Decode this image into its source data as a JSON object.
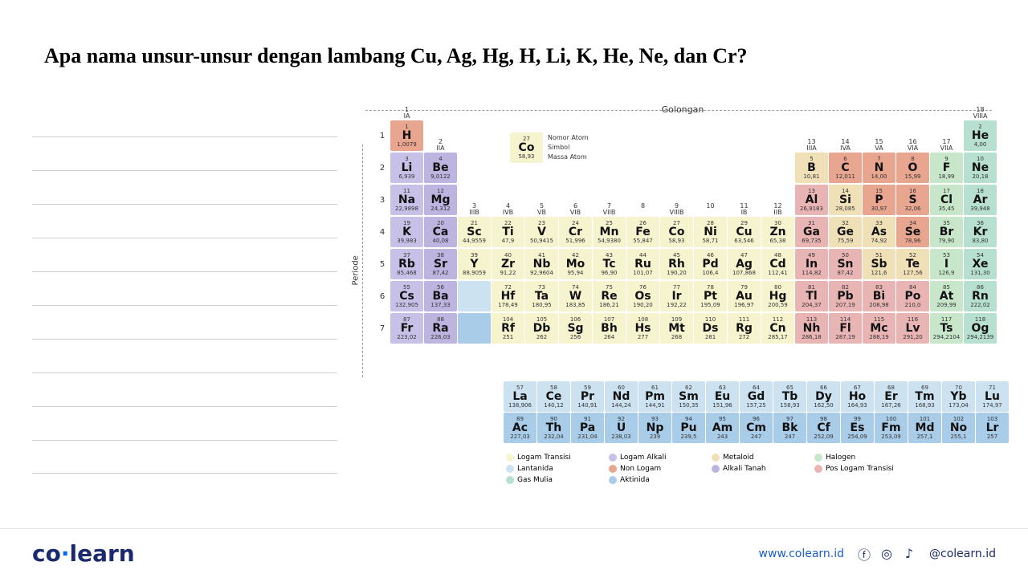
{
  "title": "Apa nama unsur-unsur dengan lambang Cu, Ag, Hg, H, Li, K, He, Ne, dan Cr?",
  "golongan_label": "Golongan",
  "periode_label": "Periode",
  "key_labels": {
    "atomic_no": "Nomor Atom",
    "symbol": "Simbol",
    "mass": "Massa Atom"
  },
  "key_element": {
    "n": "27",
    "s": "Co",
    "m": "58,93"
  },
  "colors": {
    "transition": "#f6f3cf",
    "alkali": "#c7c1e8",
    "alkaline_earth": "#bdb4e0",
    "metalloid": "#f0e0b8",
    "post_transition": "#e8b4b4",
    "halogen": "#c8e6c9",
    "noble_gas": "#b8e0d0",
    "non_metal": "#e8a58f",
    "lanthanide": "#cde2f0",
    "actinide": "#a9cce8"
  },
  "groups": [
    {
      "num": "1",
      "lab": "IA"
    },
    {
      "num": "2",
      "lab": "IIA"
    },
    {
      "num": "3",
      "lab": "IIIB"
    },
    {
      "num": "4",
      "lab": "IVB"
    },
    {
      "num": "5",
      "lab": "VB"
    },
    {
      "num": "6",
      "lab": "VIB"
    },
    {
      "num": "7",
      "lab": "VIIB"
    },
    {
      "num": "8",
      "lab": ""
    },
    {
      "num": "9",
      "lab": "VIIIB"
    },
    {
      "num": "10",
      "lab": ""
    },
    {
      "num": "11",
      "lab": "IB"
    },
    {
      "num": "12",
      "lab": "IIB"
    },
    {
      "num": "13",
      "lab": "IIIA"
    },
    {
      "num": "14",
      "lab": "IVA"
    },
    {
      "num": "15",
      "lab": "VA"
    },
    {
      "num": "16",
      "lab": "VIA"
    },
    {
      "num": "17",
      "lab": "VIIA"
    },
    {
      "num": "18",
      "lab": "VIIIA"
    }
  ],
  "elements": [
    {
      "p": 1,
      "g": 1,
      "n": "1",
      "s": "H",
      "m": "1,0079",
      "c": "non_metal"
    },
    {
      "p": 1,
      "g": 18,
      "n": "2",
      "s": "He",
      "m": "4,00",
      "c": "noble_gas"
    },
    {
      "p": 2,
      "g": 1,
      "n": "3",
      "s": "Li",
      "m": "6,939",
      "c": "alkali"
    },
    {
      "p": 2,
      "g": 2,
      "n": "4",
      "s": "Be",
      "m": "9,0122",
      "c": "alkaline_earth"
    },
    {
      "p": 2,
      "g": 13,
      "n": "5",
      "s": "B",
      "m": "10,81",
      "c": "metalloid"
    },
    {
      "p": 2,
      "g": 14,
      "n": "6",
      "s": "C",
      "m": "12,011",
      "c": "non_metal"
    },
    {
      "p": 2,
      "g": 15,
      "n": "7",
      "s": "N",
      "m": "14,00",
      "c": "non_metal"
    },
    {
      "p": 2,
      "g": 16,
      "n": "8",
      "s": "O",
      "m": "15,99",
      "c": "non_metal"
    },
    {
      "p": 2,
      "g": 17,
      "n": "9",
      "s": "F",
      "m": "18,99",
      "c": "halogen"
    },
    {
      "p": 2,
      "g": 18,
      "n": "10",
      "s": "Ne",
      "m": "20,18",
      "c": "noble_gas"
    },
    {
      "p": 3,
      "g": 1,
      "n": "11",
      "s": "Na",
      "m": "22,9898",
      "c": "alkali"
    },
    {
      "p": 3,
      "g": 2,
      "n": "12",
      "s": "Mg",
      "m": "24,312",
      "c": "alkaline_earth"
    },
    {
      "p": 3,
      "g": 13,
      "n": "13",
      "s": "Al",
      "m": "26,9183",
      "c": "post_transition"
    },
    {
      "p": 3,
      "g": 14,
      "n": "14",
      "s": "Si",
      "m": "28,085",
      "c": "metalloid"
    },
    {
      "p": 3,
      "g": 15,
      "n": "15",
      "s": "P",
      "m": "30,97",
      "c": "non_metal"
    },
    {
      "p": 3,
      "g": 16,
      "n": "16",
      "s": "S",
      "m": "32,06",
      "c": "non_metal"
    },
    {
      "p": 3,
      "g": 17,
      "n": "17",
      "s": "Cl",
      "m": "35,45",
      "c": "halogen"
    },
    {
      "p": 3,
      "g": 18,
      "n": "18",
      "s": "Ar",
      "m": "39,948",
      "c": "noble_gas"
    },
    {
      "p": 4,
      "g": 1,
      "n": "19",
      "s": "K",
      "m": "39,983",
      "c": "alkali"
    },
    {
      "p": 4,
      "g": 2,
      "n": "20",
      "s": "Ca",
      "m": "40,08",
      "c": "alkaline_earth"
    },
    {
      "p": 4,
      "g": 3,
      "n": "21",
      "s": "Sc",
      "m": "44,9559",
      "c": "transition"
    },
    {
      "p": 4,
      "g": 4,
      "n": "22",
      "s": "Ti",
      "m": "47,9",
      "c": "transition"
    },
    {
      "p": 4,
      "g": 5,
      "n": "23",
      "s": "V",
      "m": "50,9415",
      "c": "transition"
    },
    {
      "p": 4,
      "g": 6,
      "n": "24",
      "s": "Cr",
      "m": "51,996",
      "c": "transition"
    },
    {
      "p": 4,
      "g": 7,
      "n": "25",
      "s": "Mn",
      "m": "54,9380",
      "c": "transition"
    },
    {
      "p": 4,
      "g": 8,
      "n": "26",
      "s": "Fe",
      "m": "55,847",
      "c": "transition"
    },
    {
      "p": 4,
      "g": 9,
      "n": "27",
      "s": "Co",
      "m": "58,93",
      "c": "transition"
    },
    {
      "p": 4,
      "g": 10,
      "n": "28",
      "s": "Ni",
      "m": "58,71",
      "c": "transition"
    },
    {
      "p": 4,
      "g": 11,
      "n": "29",
      "s": "Cu",
      "m": "63,546",
      "c": "transition"
    },
    {
      "p": 4,
      "g": 12,
      "n": "30",
      "s": "Zn",
      "m": "65,38",
      "c": "transition"
    },
    {
      "p": 4,
      "g": 13,
      "n": "31",
      "s": "Ga",
      "m": "69,735",
      "c": "post_transition"
    },
    {
      "p": 4,
      "g": 14,
      "n": "32",
      "s": "Ge",
      "m": "75,59",
      "c": "metalloid"
    },
    {
      "p": 4,
      "g": 15,
      "n": "33",
      "s": "As",
      "m": "74,92",
      "c": "metalloid"
    },
    {
      "p": 4,
      "g": 16,
      "n": "34",
      "s": "Se",
      "m": "78,96",
      "c": "non_metal"
    },
    {
      "p": 4,
      "g": 17,
      "n": "35",
      "s": "Br",
      "m": "79,90",
      "c": "halogen"
    },
    {
      "p": 4,
      "g": 18,
      "n": "36",
      "s": "Kr",
      "m": "83,80",
      "c": "noble_gas"
    },
    {
      "p": 5,
      "g": 1,
      "n": "37",
      "s": "Rb",
      "m": "85,468",
      "c": "alkali"
    },
    {
      "p": 5,
      "g": 2,
      "n": "38",
      "s": "Sr",
      "m": "87,42",
      "c": "alkaline_earth"
    },
    {
      "p": 5,
      "g": 3,
      "n": "39",
      "s": "Y",
      "m": "88,9059",
      "c": "transition"
    },
    {
      "p": 5,
      "g": 4,
      "n": "40",
      "s": "Zr",
      "m": "91,22",
      "c": "transition"
    },
    {
      "p": 5,
      "g": 5,
      "n": "41",
      "s": "Nb",
      "m": "92,9604",
      "c": "transition"
    },
    {
      "p": 5,
      "g": 6,
      "n": "42",
      "s": "Mo",
      "m": "95,94",
      "c": "transition"
    },
    {
      "p": 5,
      "g": 7,
      "n": "43",
      "s": "Tc",
      "m": "96,90",
      "c": "transition"
    },
    {
      "p": 5,
      "g": 8,
      "n": "44",
      "s": "Ru",
      "m": "101,07",
      "c": "transition"
    },
    {
      "p": 5,
      "g": 9,
      "n": "45",
      "s": "Rh",
      "m": "190,20",
      "c": "transition"
    },
    {
      "p": 5,
      "g": 10,
      "n": "46",
      "s": "Pd",
      "m": "106,4",
      "c": "transition"
    },
    {
      "p": 5,
      "g": 11,
      "n": "47",
      "s": "Ag",
      "m": "107,868",
      "c": "transition"
    },
    {
      "p": 5,
      "g": 12,
      "n": "48",
      "s": "Cd",
      "m": "112,41",
      "c": "transition"
    },
    {
      "p": 5,
      "g": 13,
      "n": "49",
      "s": "In",
      "m": "114,82",
      "c": "post_transition"
    },
    {
      "p": 5,
      "g": 14,
      "n": "50",
      "s": "Sn",
      "m": "87,42",
      "c": "post_transition"
    },
    {
      "p": 5,
      "g": 15,
      "n": "51",
      "s": "Sb",
      "m": "121,6",
      "c": "metalloid"
    },
    {
      "p": 5,
      "g": 16,
      "n": "52",
      "s": "Te",
      "m": "127,56",
      "c": "metalloid"
    },
    {
      "p": 5,
      "g": 17,
      "n": "53",
      "s": "I",
      "m": "126,9",
      "c": "halogen"
    },
    {
      "p": 5,
      "g": 18,
      "n": "54",
      "s": "Xe",
      "m": "131,30",
      "c": "noble_gas"
    },
    {
      "p": 6,
      "g": 1,
      "n": "55",
      "s": "Cs",
      "m": "132,905",
      "c": "alkali"
    },
    {
      "p": 6,
      "g": 2,
      "n": "56",
      "s": "Ba",
      "m": "137,33",
      "c": "alkaline_earth"
    },
    {
      "p": 6,
      "g": 3,
      "n": "",
      "s": "",
      "m": "",
      "c": "lanthanide"
    },
    {
      "p": 6,
      "g": 4,
      "n": "72",
      "s": "Hf",
      "m": "178,49",
      "c": "transition"
    },
    {
      "p": 6,
      "g": 5,
      "n": "73",
      "s": "Ta",
      "m": "180,95",
      "c": "transition"
    },
    {
      "p": 6,
      "g": 6,
      "n": "74",
      "s": "W",
      "m": "183,85",
      "c": "transition"
    },
    {
      "p": 6,
      "g": 7,
      "n": "75",
      "s": "Re",
      "m": "186,21",
      "c": "transition"
    },
    {
      "p": 6,
      "g": 8,
      "n": "76",
      "s": "Os",
      "m": "190,20",
      "c": "transition"
    },
    {
      "p": 6,
      "g": 9,
      "n": "77",
      "s": "Ir",
      "m": "192,22",
      "c": "transition"
    },
    {
      "p": 6,
      "g": 10,
      "n": "78",
      "s": "Pt",
      "m": "195,09",
      "c": "transition"
    },
    {
      "p": 6,
      "g": 11,
      "n": "79",
      "s": "Au",
      "m": "196,97",
      "c": "transition"
    },
    {
      "p": 6,
      "g": 12,
      "n": "80",
      "s": "Hg",
      "m": "200,59",
      "c": "transition"
    },
    {
      "p": 6,
      "g": 13,
      "n": "81",
      "s": "Tl",
      "m": "204,37",
      "c": "post_transition"
    },
    {
      "p": 6,
      "g": 14,
      "n": "82",
      "s": "Pb",
      "m": "207,19",
      "c": "post_transition"
    },
    {
      "p": 6,
      "g": 15,
      "n": "83",
      "s": "Bi",
      "m": "208,98",
      "c": "post_transition"
    },
    {
      "p": 6,
      "g": 16,
      "n": "84",
      "s": "Po",
      "m": "210,0",
      "c": "post_transition"
    },
    {
      "p": 6,
      "g": 17,
      "n": "85",
      "s": "At",
      "m": "209,99",
      "c": "halogen"
    },
    {
      "p": 6,
      "g": 18,
      "n": "86",
      "s": "Rn",
      "m": "222,02",
      "c": "noble_gas"
    },
    {
      "p": 7,
      "g": 1,
      "n": "87",
      "s": "Fr",
      "m": "223,02",
      "c": "alkali"
    },
    {
      "p": 7,
      "g": 2,
      "n": "88",
      "s": "Ra",
      "m": "226,03",
      "c": "alkaline_earth"
    },
    {
      "p": 7,
      "g": 3,
      "n": "",
      "s": "",
      "m": "",
      "c": "actinide"
    },
    {
      "p": 7,
      "g": 4,
      "n": "104",
      "s": "Rf",
      "m": "251",
      "c": "transition"
    },
    {
      "p": 7,
      "g": 5,
      "n": "105",
      "s": "Db",
      "m": "262",
      "c": "transition"
    },
    {
      "p": 7,
      "g": 6,
      "n": "106",
      "s": "Sg",
      "m": "256",
      "c": "transition"
    },
    {
      "p": 7,
      "g": 7,
      "n": "107",
      "s": "Bh",
      "m": "264",
      "c": "transition"
    },
    {
      "p": 7,
      "g": 8,
      "n": "108",
      "s": "Hs",
      "m": "277",
      "c": "transition"
    },
    {
      "p": 7,
      "g": 9,
      "n": "109",
      "s": "Mt",
      "m": "268",
      "c": "transition"
    },
    {
      "p": 7,
      "g": 10,
      "n": "110",
      "s": "Ds",
      "m": "281",
      "c": "transition"
    },
    {
      "p": 7,
      "g": 11,
      "n": "111",
      "s": "Rg",
      "m": "272",
      "c": "transition"
    },
    {
      "p": 7,
      "g": 12,
      "n": "112",
      "s": "Cn",
      "m": "285,17",
      "c": "transition"
    },
    {
      "p": 7,
      "g": 13,
      "n": "113",
      "s": "Nh",
      "m": "286,18",
      "c": "post_transition"
    },
    {
      "p": 7,
      "g": 14,
      "n": "114",
      "s": "Fl",
      "m": "287,19",
      "c": "post_transition"
    },
    {
      "p": 7,
      "g": 15,
      "n": "115",
      "s": "Mc",
      "m": "288,19",
      "c": "post_transition"
    },
    {
      "p": 7,
      "g": 16,
      "n": "116",
      "s": "Lv",
      "m": "291,20",
      "c": "post_transition"
    },
    {
      "p": 7,
      "g": 17,
      "n": "117",
      "s": "Ts",
      "m": "294,2104",
      "c": "halogen"
    },
    {
      "p": 7,
      "g": 18,
      "n": "118",
      "s": "Og",
      "m": "294,2139",
      "c": "noble_gas"
    }
  ],
  "lanthanides": [
    {
      "n": "57",
      "s": "La",
      "m": "138,906"
    },
    {
      "n": "58",
      "s": "Ce",
      "m": "140,12"
    },
    {
      "n": "59",
      "s": "Pr",
      "m": "140,91"
    },
    {
      "n": "60",
      "s": "Nd",
      "m": "144,24"
    },
    {
      "n": "61",
      "s": "Pm",
      "m": "144,91"
    },
    {
      "n": "62",
      "s": "Sm",
      "m": "150,35"
    },
    {
      "n": "63",
      "s": "Eu",
      "m": "151,96"
    },
    {
      "n": "64",
      "s": "Gd",
      "m": "157,25"
    },
    {
      "n": "65",
      "s": "Tb",
      "m": "158,93"
    },
    {
      "n": "66",
      "s": "Dy",
      "m": "162,50"
    },
    {
      "n": "67",
      "s": "Ho",
      "m": "164,93"
    },
    {
      "n": "68",
      "s": "Er",
      "m": "167,26"
    },
    {
      "n": "69",
      "s": "Tm",
      "m": "168,93"
    },
    {
      "n": "70",
      "s": "Yb",
      "m": "173,04"
    },
    {
      "n": "71",
      "s": "Lu",
      "m": "174,97"
    }
  ],
  "actinides": [
    {
      "n": "89",
      "s": "Ac",
      "m": "227,03"
    },
    {
      "n": "90",
      "s": "Th",
      "m": "232,04"
    },
    {
      "n": "91",
      "s": "Pa",
      "m": "231,04"
    },
    {
      "n": "92",
      "s": "U",
      "m": "238,03"
    },
    {
      "n": "93",
      "s": "Np",
      "m": "239"
    },
    {
      "n": "94",
      "s": "Pu",
      "m": "239,5"
    },
    {
      "n": "95",
      "s": "Am",
      "m": "243"
    },
    {
      "n": "96",
      "s": "Cm",
      "m": "247"
    },
    {
      "n": "97",
      "s": "Bk",
      "m": "247"
    },
    {
      "n": "98",
      "s": "Cf",
      "m": "252,09"
    },
    {
      "n": "99",
      "s": "Es",
      "m": "254,09"
    },
    {
      "n": "100",
      "s": "Fm",
      "m": "253,09"
    },
    {
      "n": "101",
      "s": "Md",
      "m": "257,1"
    },
    {
      "n": "102",
      "s": "No",
      "m": "255,1"
    },
    {
      "n": "103",
      "s": "Lr",
      "m": "257"
    }
  ],
  "legend": [
    {
      "c": "transition",
      "t": "Logam Transisi"
    },
    {
      "c": "alkali",
      "t": "Logam Alkali"
    },
    {
      "c": "metalloid",
      "t": "Metaloid"
    },
    {
      "c": "halogen",
      "t": "Halogen"
    },
    {
      "c": "lanthanide",
      "t": "Lantanida"
    },
    {
      "c": "non_metal",
      "t": "Non Logam"
    },
    {
      "c": "alkaline_earth",
      "t": "Alkali Tanah"
    },
    {
      "c": "post_transition",
      "t": "Pos Logam Transisi"
    },
    {
      "c": "noble_gas",
      "t": "Gas Mulia"
    },
    {
      "c": "actinide",
      "t": "Aktinida"
    }
  ],
  "footer": {
    "logo_a": "co",
    "logo_b": "learn",
    "url": "www.colearn.id",
    "handle": "@colearn.id"
  }
}
